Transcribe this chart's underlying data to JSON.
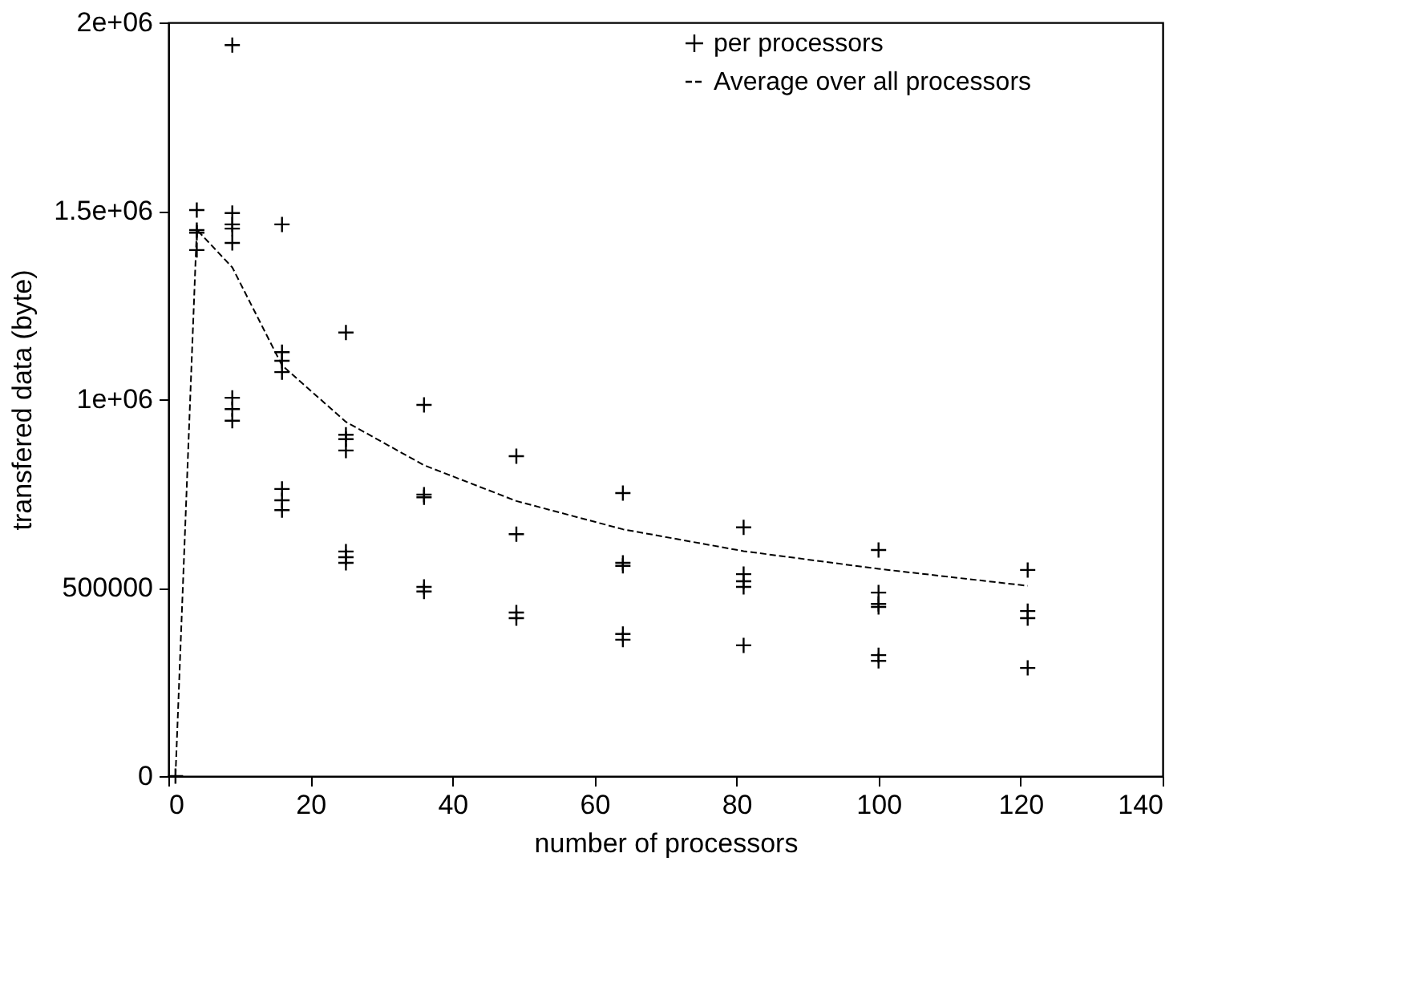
{
  "chart_data": {
    "type": "scatter",
    "xlabel": "number of processors",
    "ylabel": "transfered data (byte)",
    "xlim": [
      0,
      140
    ],
    "xticks": [
      0,
      20,
      40,
      60,
      80,
      100,
      120,
      140
    ],
    "ylim": [
      0,
      2000000
    ],
    "yticks": [
      0,
      {
        "value": 500000,
        "label": "500000"
      },
      {
        "value": 1000000,
        "label": "1e+06"
      },
      {
        "value": 1500000,
        "label": "1.5e+06"
      },
      {
        "value": 2000000,
        "label": "2e+06"
      }
    ],
    "grid": false,
    "legend": "top right",
    "series": [
      {
        "name": "per processors",
        "marker": "cross",
        "color": "#000000",
        "x": [
          1,
          4,
          4,
          4,
          4,
          9,
          9,
          9,
          9,
          9,
          9,
          9,
          9,
          16,
          16,
          16,
          16,
          16,
          16,
          16,
          25,
          25,
          25,
          25,
          25,
          25,
          25,
          36,
          36,
          36,
          36,
          36,
          49,
          49,
          49,
          49,
          64,
          64,
          64,
          64,
          64,
          81,
          81,
          81,
          81,
          81,
          100,
          100,
          100,
          100,
          100,
          100,
          121,
          121,
          121,
          121
        ],
        "values": [
          0,
          1502000,
          1449000,
          1442000,
          1396000,
          1940000,
          1494000,
          1464000,
          1453000,
          1415000,
          1004000,
          974000,
          943000,
          1464000,
          1125000,
          1102000,
          1072000,
          762000,
          732000,
          706000,
          1177000,
          906000,
          894000,
          864000,
          596000,
          581000,
          566000,
          985000,
          747000,
          740000,
          502000,
          490000,
          849000,
          642000,
          434000,
          419000,
          751000,
          566000,
          558000,
          377000,
          362000,
          660000,
          536000,
          517000,
          502000,
          347000,
          600000,
          487000,
          457000,
          449000,
          321000,
          306000,
          547000,
          438000,
          419000,
          287000
        ]
      },
      {
        "name": "Average over all processors",
        "type": "line",
        "marker": "none",
        "line_style": "dashed",
        "color": "#000000",
        "x": [
          1,
          4,
          9,
          16,
          25,
          36,
          49,
          64,
          81,
          100,
          121
        ],
        "values": [
          0,
          1450000,
          1350000,
          1090000,
          940000,
          825000,
          730000,
          655000,
          597000,
          550000,
          505000
        ]
      }
    ]
  }
}
